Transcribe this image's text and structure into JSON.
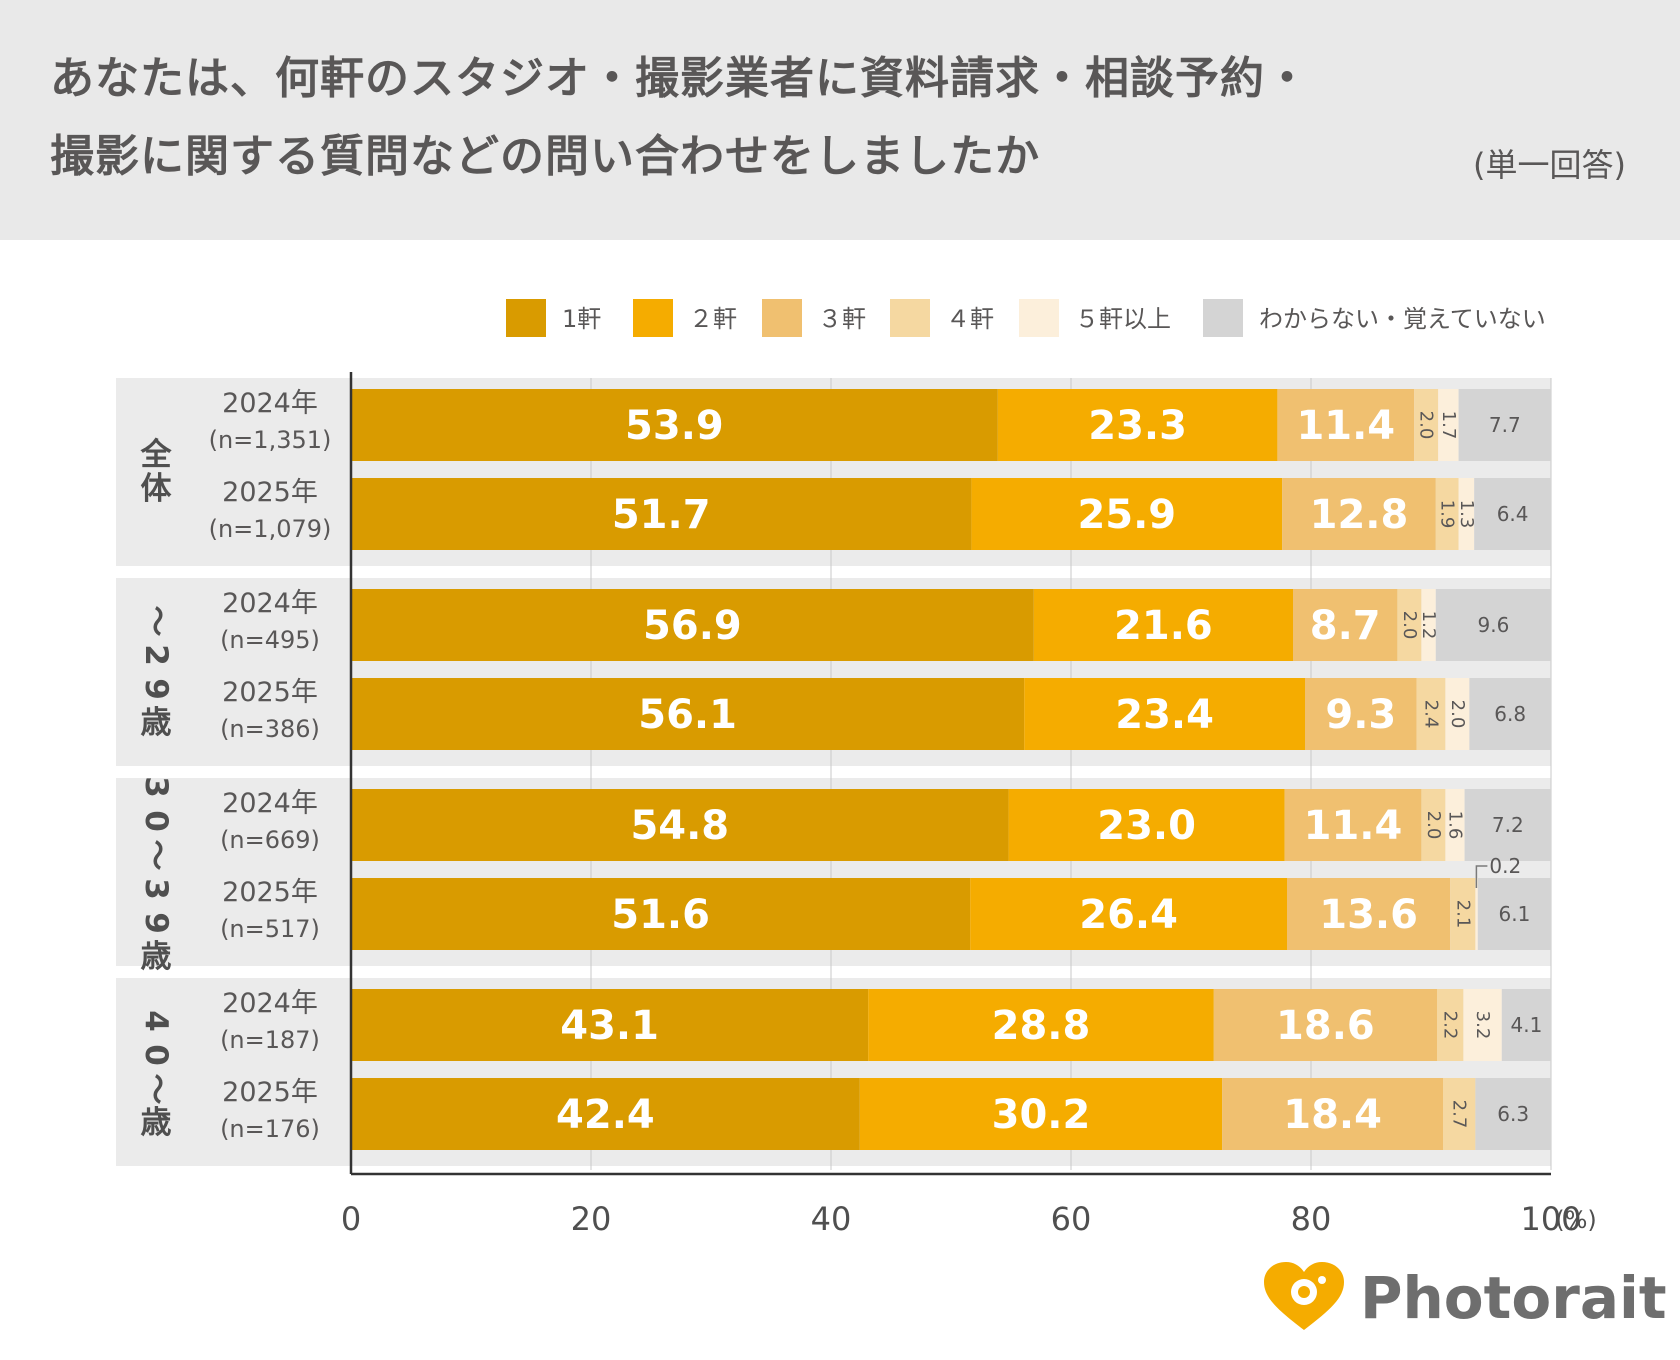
{
  "title_line1": "あなたは、何軒のスタジオ・撮影業者に資料請求・相談予約・",
  "title_line2": "撮影に関する質問などの問い合わせをしましたか",
  "note": "(単一回答)",
  "brand": "Photorait",
  "chart_data": {
    "type": "bar",
    "orientation": "horizontal",
    "stacked": true,
    "unit": "(%)",
    "xlim": [
      0,
      100
    ],
    "xticks": [
      "0",
      "20",
      "40",
      "60",
      "80",
      "100"
    ],
    "grid": true,
    "legend_position": "top-right",
    "series": [
      {
        "name": "1軒",
        "color": "#d99b00"
      },
      {
        "name": "２軒",
        "color": "#f5ac00"
      },
      {
        "name": "３軒",
        "color": "#f0c070"
      },
      {
        "name": "４軒",
        "color": "#f5d8a1"
      },
      {
        "name": "５軒以上",
        "color": "#fcefdb"
      },
      {
        "name": "わからない・覚えていない",
        "color": "#d4d4d4"
      }
    ],
    "groups": [
      {
        "name": "全体",
        "rows": [
          {
            "year": "2024年",
            "n": "(n=1,351)",
            "values": [
              53.9,
              23.3,
              11.4,
              2.0,
              1.7,
              7.7
            ],
            "labels": [
              "53.9",
              "23.3",
              "11.4",
              "2.0",
              "1.7",
              "7.7"
            ]
          },
          {
            "year": "2025年",
            "n": "(n=1,079)",
            "values": [
              51.7,
              25.9,
              12.8,
              1.9,
              1.3,
              6.4
            ],
            "labels": [
              "51.7",
              "25.9",
              "12.8",
              "1.9",
              "1.3",
              "6.4"
            ]
          }
        ]
      },
      {
        "name": "～29歳",
        "rows": [
          {
            "year": "2024年",
            "n": "(n=495)",
            "values": [
              56.9,
              21.6,
              8.7,
              2.0,
              1.2,
              9.6
            ],
            "labels": [
              "56.9",
              "21.6",
              "8.7",
              "2.0",
              "1.2",
              "9.6"
            ]
          },
          {
            "year": "2025年",
            "n": "(n=386)",
            "values": [
              56.1,
              23.4,
              9.3,
              2.4,
              2.0,
              6.8
            ],
            "labels": [
              "56.1",
              "23.4",
              "9.3",
              "2.4",
              "2.0",
              "6.8"
            ]
          }
        ]
      },
      {
        "name": "30～39歳",
        "rows": [
          {
            "year": "2024年",
            "n": "(n=669)",
            "values": [
              54.8,
              23.0,
              11.4,
              2.0,
              1.6,
              7.2
            ],
            "labels": [
              "54.8",
              "23.0",
              "11.4",
              "2.0",
              "1.6",
              "7.2"
            ]
          },
          {
            "year": "2025年",
            "n": "(n=517)",
            "values": [
              51.6,
              26.4,
              13.6,
              2.1,
              0.2,
              6.1
            ],
            "labels": [
              "51.6",
              "26.4",
              "13.6",
              "2.1",
              "0.2",
              "6.1"
            ]
          }
        ]
      },
      {
        "name": "40～歳",
        "rows": [
          {
            "year": "2024年",
            "n": "(n=187)",
            "values": [
              43.1,
              28.8,
              18.6,
              2.2,
              3.2,
              4.1
            ],
            "labels": [
              "43.1",
              "28.8",
              "18.6",
              "2.2",
              "3.2",
              "4.1"
            ]
          },
          {
            "year": "2025年",
            "n": "(n=176)",
            "values": [
              42.4,
              30.2,
              18.4,
              2.7,
              0,
              6.3
            ],
            "labels": [
              "42.4",
              "30.2",
              "18.4",
              "2.7",
              "",
              "6.3"
            ]
          }
        ]
      }
    ]
  }
}
